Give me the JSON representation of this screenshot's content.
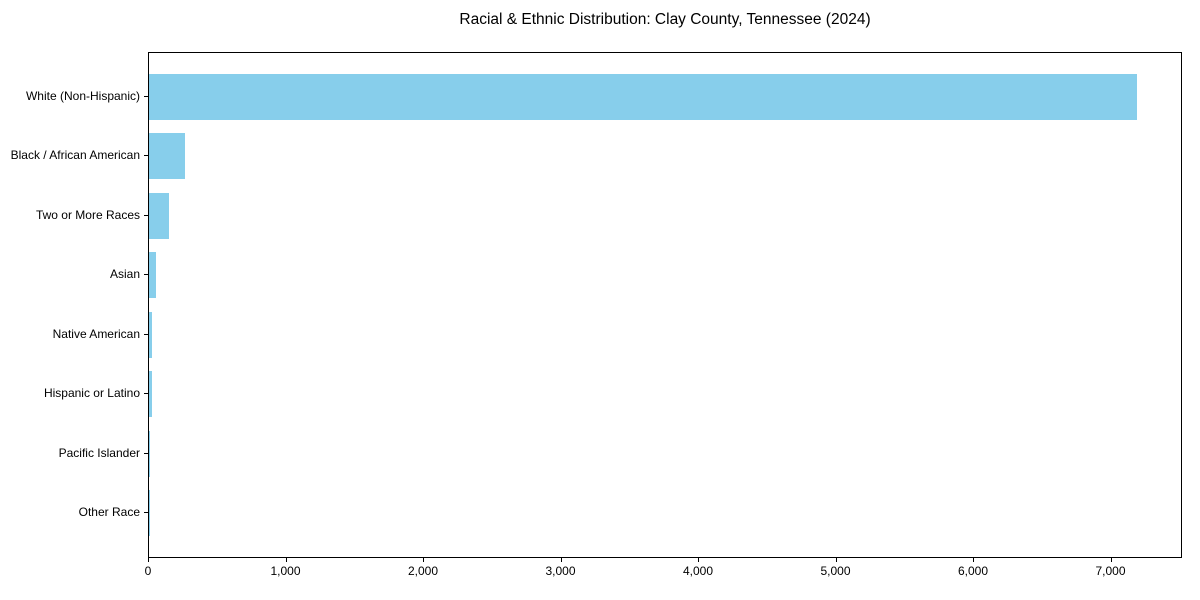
{
  "chart_data": {
    "type": "bar",
    "orientation": "horizontal",
    "title": "Racial & Ethnic Distribution: Clay County, Tennessee (2024)",
    "categories": [
      "White (Non-Hispanic)",
      "Black / African American",
      "Two or More Races",
      "Asian",
      "Native American",
      "Hispanic or Latino",
      "Pacific Islander",
      "Other Race"
    ],
    "values": [
      7200,
      260,
      145,
      48,
      22,
      25,
      2,
      1
    ],
    "bar_color": "#87CEEB",
    "xlabel": "",
    "ylabel": "",
    "xlim": [
      0,
      7520
    ],
    "x_ticks": [
      0,
      1000,
      2000,
      3000,
      4000,
      5000,
      6000,
      7000
    ],
    "x_tick_labels": [
      "0",
      "1,000",
      "2,000",
      "3,000",
      "4,000",
      "5,000",
      "6,000",
      "7,000"
    ],
    "grid": false,
    "legend": "none",
    "background_color": "#ffffff",
    "axis_color": "#000000",
    "text_color": "#000000"
  }
}
